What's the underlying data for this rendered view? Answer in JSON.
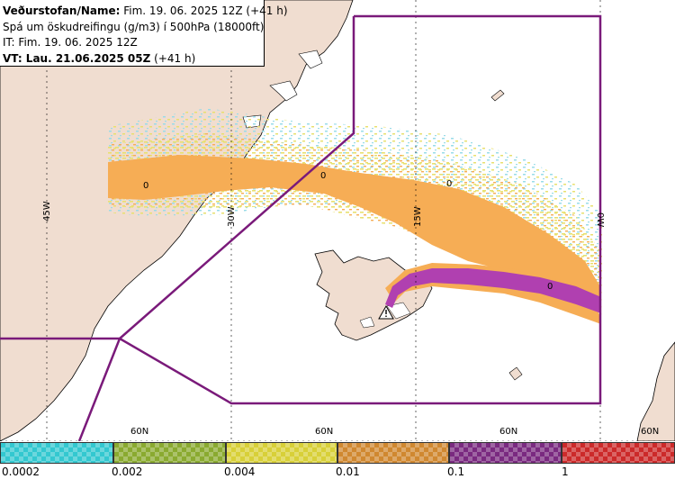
{
  "header": {
    "name_label": "Veðurstofan/Name:",
    "name_value": " Fim. 19. 06. 2025 12Z (+41 h)",
    "forecast_line": "Spá um öskudreifingu (g/m3) í 500hPa (18000ft)",
    "it_line": "IT: Fim. 19. 06. 2025 12Z",
    "vt_label": "VT:",
    "vt_value": " Lau. 21.06.2025 05Z",
    "vt_suffix": " (+41 h)"
  },
  "map": {
    "longitude_labels": [
      "45W",
      "30W",
      "15W",
      "0W"
    ],
    "latitude_labels": [
      "60N",
      "60N",
      "60N",
      "60N"
    ],
    "contour_labels": [
      "0",
      "0",
      "0",
      "0"
    ],
    "colors": {
      "land": "#f0ddd0",
      "sea": "#ffffff",
      "fir_boundary": "#7a1a7a",
      "ash_low": "#9adce8",
      "ash_mid": "#e8e070",
      "ash_orange": "#f6ad55",
      "ash_purple": "#b040b0"
    },
    "volcano_icon": "warning-triangle-icon"
  },
  "legend": {
    "ticks": [
      "0.0002",
      "0.002",
      "0.004",
      "0.01",
      "0.1",
      "1"
    ],
    "colors": [
      "#33c8d0",
      "#8aaa30",
      "#d8d038",
      "#d08830",
      "#7a2a80",
      "#cc2a2a"
    ]
  }
}
